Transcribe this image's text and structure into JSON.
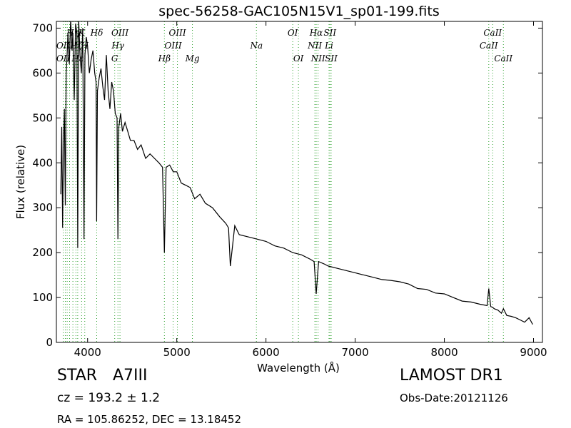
{
  "chart_data": {
    "type": "line",
    "title": "spec-56258-GAC105N15V1_sp01-199.fits",
    "xlabel": "Wavelength (Å)",
    "ylabel": "Flux (relative)",
    "xlim": [
      3650,
      9100
    ],
    "ylim": [
      0,
      715
    ],
    "xticks": [
      4000,
      5000,
      6000,
      7000,
      8000,
      9000
    ],
    "yticks": [
      0,
      100,
      200,
      300,
      400,
      500,
      600,
      700
    ],
    "grid": false,
    "line_color": "#000000",
    "marker_color": "#2ca02c",
    "series": [
      {
        "x": [
          3700,
          3710,
          3720,
          3730,
          3740,
          3750,
          3760,
          3770,
          3780,
          3795,
          3810,
          3825,
          3835,
          3850,
          3865,
          3880,
          3889,
          3900,
          3915,
          3930,
          3945,
          3960,
          3970,
          3985,
          4000,
          4020,
          4040,
          4060,
          4080,
          4095,
          4101,
          4110,
          4130,
          4150,
          4170,
          4190,
          4210,
          4230,
          4250,
          4270,
          4290,
          4310,
          4330,
          4340,
          4350,
          4370,
          4390,
          4420,
          4450,
          4480,
          4520,
          4560,
          4600,
          4650,
          4700,
          4750,
          4800,
          4840,
          4861,
          4880,
          4920,
          4960,
          5000,
          5050,
          5100,
          5150,
          5200,
          5260,
          5320,
          5400,
          5480,
          5550,
          5580,
          5600,
          5650,
          5700,
          5800,
          5900,
          6000,
          6100,
          6200,
          6300,
          6400,
          6500,
          6540,
          6563,
          6590,
          6650,
          6700,
          6800,
          6900,
          7000,
          7100,
          7200,
          7300,
          7400,
          7500,
          7600,
          7700,
          7800,
          7900,
          8000,
          8100,
          8200,
          8300,
          8400,
          8480,
          8498,
          8520,
          8542,
          8560,
          8600,
          8640,
          8662,
          8700,
          8750,
          8800,
          8850,
          8900,
          8950,
          8990
        ],
        "y": [
          330,
          480,
          255,
          450,
          520,
          305,
          600,
          640,
          690,
          620,
          720,
          650,
          690,
          540,
          710,
          690,
          210,
          720,
          640,
          600,
          700,
          230,
          640,
          680,
          660,
          600,
          630,
          650,
          600,
          580,
          270,
          560,
          590,
          610,
          570,
          540,
          640,
          560,
          520,
          580,
          560,
          510,
          500,
          230,
          480,
          510,
          470,
          490,
          470,
          450,
          450,
          430,
          440,
          410,
          420,
          410,
          400,
          390,
          200,
          390,
          395,
          380,
          380,
          355,
          350,
          345,
          320,
          330,
          310,
          300,
          280,
          265,
          255,
          170,
          260,
          240,
          235,
          230,
          225,
          215,
          210,
          200,
          195,
          185,
          180,
          108,
          180,
          175,
          170,
          165,
          160,
          155,
          150,
          145,
          140,
          138,
          135,
          130,
          120,
          118,
          110,
          108,
          100,
          92,
          90,
          85,
          82,
          120,
          80,
          78,
          75,
          72,
          65,
          75,
          60,
          58,
          55,
          50,
          45,
          55,
          40
        ]
      }
    ],
    "lines": [
      {
        "x": 3727,
        "label": "OII"
      },
      {
        "x": 3750,
        "label": ""
      },
      {
        "x": 3771,
        "label": "H"
      },
      {
        "x": 3798,
        "label": ""
      },
      {
        "x": 3835,
        "label": "Hη"
      },
      {
        "x": 3869,
        "label": "Hζ"
      },
      {
        "x": 3889,
        "label": "Hε"
      },
      {
        "x": 3933,
        "label": "K"
      },
      {
        "x": 3968,
        "label": "H"
      },
      {
        "x": 4102,
        "label": "Hδ"
      },
      {
        "x": 4304,
        "label": "G"
      },
      {
        "x": 4340,
        "label": "Hγ"
      },
      {
        "x": 4363,
        "label": "OIII"
      },
      {
        "x": 4861,
        "label": "Hβ"
      },
      {
        "x": 4959,
        "label": "OIII"
      },
      {
        "x": 5007,
        "label": "OIII"
      },
      {
        "x": 5175,
        "label": "Mg"
      },
      {
        "x": 5893,
        "label": "Na"
      },
      {
        "x": 6300,
        "label": "OI"
      },
      {
        "x": 6364,
        "label": "OI"
      },
      {
        "x": 6548,
        "label": "NII"
      },
      {
        "x": 6563,
        "label": "Hα"
      },
      {
        "x": 6584,
        "label": "NII"
      },
      {
        "x": 6707,
        "label": "Li"
      },
      {
        "x": 6717,
        "label": "SII"
      },
      {
        "x": 6731,
        "label": "SII"
      },
      {
        "x": 8498,
        "label": "CaII"
      },
      {
        "x": 8542,
        "label": "CaII"
      },
      {
        "x": 8662,
        "label": "CaII"
      }
    ],
    "line_label_rows": [
      {
        "text": "Hη",
        "x": 3835,
        "row": 0
      },
      {
        "text": "K",
        "x": 3933,
        "row": 0
      },
      {
        "text": "Hδ",
        "x": 4102,
        "row": 0
      },
      {
        "text": "OIII",
        "x": 4363,
        "row": 0
      },
      {
        "text": "OIII",
        "x": 5007,
        "row": 0
      },
      {
        "text": "OI",
        "x": 6300,
        "row": 0
      },
      {
        "text": "Hα",
        "x": 6563,
        "row": 0
      },
      {
        "text": "SII",
        "x": 6717,
        "row": 0
      },
      {
        "text": "CaII",
        "x": 8542,
        "row": 0
      },
      {
        "text": "OII",
        "x": 3727,
        "row": 1
      },
      {
        "text": "Hζ",
        "x": 3869,
        "row": 1
      },
      {
        "text": "H",
        "x": 3968,
        "row": 1
      },
      {
        "text": "Hγ",
        "x": 4340,
        "row": 1
      },
      {
        "text": "OIII",
        "x": 4959,
        "row": 1
      },
      {
        "text": "Na",
        "x": 5893,
        "row": 1
      },
      {
        "text": "NII",
        "x": 6548,
        "row": 1
      },
      {
        "text": "Li",
        "x": 6707,
        "row": 1
      },
      {
        "text": "CaII",
        "x": 8498,
        "row": 1
      },
      {
        "text": "OII",
        "x": 3727,
        "row": 2
      },
      {
        "text": "Hε",
        "x": 3889,
        "row": 2
      },
      {
        "text": "G",
        "x": 4304,
        "row": 2
      },
      {
        "text": "Hβ",
        "x": 4861,
        "row": 2
      },
      {
        "text": "Mg",
        "x": 5175,
        "row": 2
      },
      {
        "text": "OI",
        "x": 6364,
        "row": 2
      },
      {
        "text": "NII",
        "x": 6584,
        "row": 2
      },
      {
        "text": "SII",
        "x": 6731,
        "row": 2
      },
      {
        "text": "CaII",
        "x": 8662,
        "row": 2
      }
    ]
  },
  "info": {
    "class": "STAR",
    "subclass": "A7III",
    "survey": "LAMOST DR1",
    "redshift": "cz = 193.2 ± 1.2",
    "obs_date": "Obs-Date:20121126",
    "coords": "RA = 105.86252, DEC = 13.18452"
  }
}
